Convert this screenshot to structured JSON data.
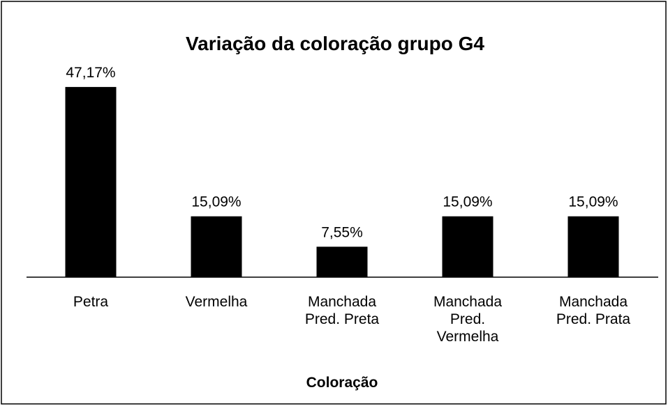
{
  "chart_data": {
    "type": "bar",
    "title": "Variação da coloração grupo G4",
    "categories": [
      "Petra",
      "Vermelha",
      "Manchada Pred. Preta",
      "Manchada Pred. Vermelha",
      "Manchada Pred. Prata"
    ],
    "values": [
      47.17,
      15.09,
      7.55,
      15.09,
      15.09
    ],
    "value_labels": [
      "47,17%",
      "15,09%",
      "7,55%",
      "15,09%",
      "15,09%"
    ],
    "color": "#000000",
    "x_label": "Coloração"
  }
}
